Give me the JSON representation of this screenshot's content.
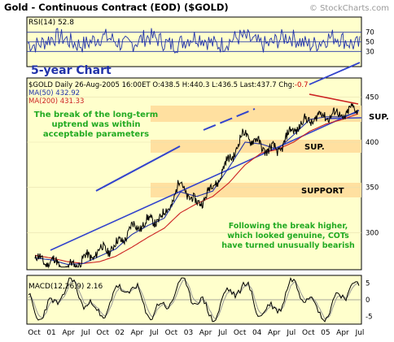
{
  "header": {
    "title": "Gold - Continuous Contract (EOD) ($GOLD)",
    "watermark": "© StockCharts.com"
  },
  "rsi": {
    "label": "RSI(14) 52.8",
    "ticks": [
      "70",
      "50",
      "30"
    ]
  },
  "price_panel": {
    "quote_line": "$GOLD Daily 26-Aug-2005 16:00ET  O:438.5  H:440.3  L:436.5  Last:437.7  Chg:",
    "chg": "-0.7",
    "ma50": "MA(50) 432.92",
    "ma200": "MA(200) 431.33",
    "big_label": "5-year Chart",
    "y_ticks": [
      "450",
      "400",
      "350",
      "300"
    ],
    "annotations": {
      "uptrend": [
        "The break of the long-term",
        "uptrend was within",
        "acceptable parameters"
      ],
      "sup1": "SUP.",
      "sup2": "SUP.",
      "support": "SUPPORT",
      "cots": [
        "Following the break higher,",
        "which looked genuine, COTs",
        "have turned unusually bearish"
      ]
    }
  },
  "macd": {
    "label": "MACD(12,26,9) 2.16",
    "ticks": [
      "5",
      "0",
      "-5"
    ]
  },
  "x_axis": {
    "labels": [
      "Oct",
      "01",
      "Apr",
      "Jul",
      "Oct",
      "02",
      "Apr",
      "Jul",
      "Oct",
      "03",
      "Apr",
      "Jul",
      "Oct",
      "04",
      "Apr",
      "Jul",
      "Oct",
      "05",
      "Apr",
      "Jul"
    ]
  },
  "colors": {
    "panel_bg": "#ffffcc",
    "price_line": "#000000",
    "ma50": "#2233aa",
    "ma200": "#cc2222",
    "trendline": "#3344cc",
    "annotation_green": "#22aa22",
    "support_band": "#ffe0a0",
    "resistance_red": "#cc2222",
    "rsi_line": "#2233aa"
  },
  "chart_data": [
    {
      "type": "line",
      "name": "RSI(14)",
      "ylim": [
        0,
        100
      ],
      "ticks": [
        30,
        50,
        70
      ],
      "last": 52.8
    },
    {
      "type": "line",
      "title": "Gold - Continuous Contract (EOD) ($GOLD)",
      "period": "Oct 2000 - Aug 2005",
      "x": [
        "Oct 2000",
        "Jan 2001",
        "Apr 2001",
        "Jul 2001",
        "Oct 2001",
        "Jan 2002",
        "Apr 2002",
        "Jul 2002",
        "Oct 2002",
        "Jan 2003",
        "Apr 2003",
        "Jul 2003",
        "Oct 2003",
        "Jan 2004",
        "Apr 2004",
        "Jul 2004",
        "Oct 2004",
        "Jan 2005",
        "Apr 2005",
        "Jul 2005",
        "Aug 2005"
      ],
      "series": [
        {
          "name": "$GOLD",
          "values": [
            270,
            268,
            260,
            270,
            280,
            285,
            305,
            312,
            318,
            355,
            330,
            350,
            380,
            410,
            395,
            390,
            415,
            425,
            430,
            430,
            437.7
          ]
        },
        {
          "name": "MA(50)",
          "values": [
            272,
            270,
            265,
            266,
            274,
            282,
            298,
            308,
            316,
            345,
            340,
            346,
            372,
            400,
            398,
            392,
            408,
            425,
            428,
            428,
            432.92
          ]
        },
        {
          "name": "MA(200)",
          "values": [
            275,
            272,
            268,
            266,
            268,
            274,
            284,
            295,
            305,
            322,
            332,
            340,
            355,
            375,
            388,
            392,
            400,
            412,
            420,
            425,
            431.33
          ]
        }
      ],
      "ylim": [
        260,
        470
      ],
      "y_ticks": [
        300,
        350,
        400,
        450
      ],
      "last": {
        "open": 438.5,
        "high": 440.3,
        "low": 436.5,
        "last": 437.7,
        "chg": -0.7
      }
    },
    {
      "type": "line",
      "name": "MACD(12,26,9)",
      "ylim": [
        -7,
        7
      ],
      "ticks": [
        -5,
        0,
        5
      ],
      "last": 2.16
    }
  ]
}
